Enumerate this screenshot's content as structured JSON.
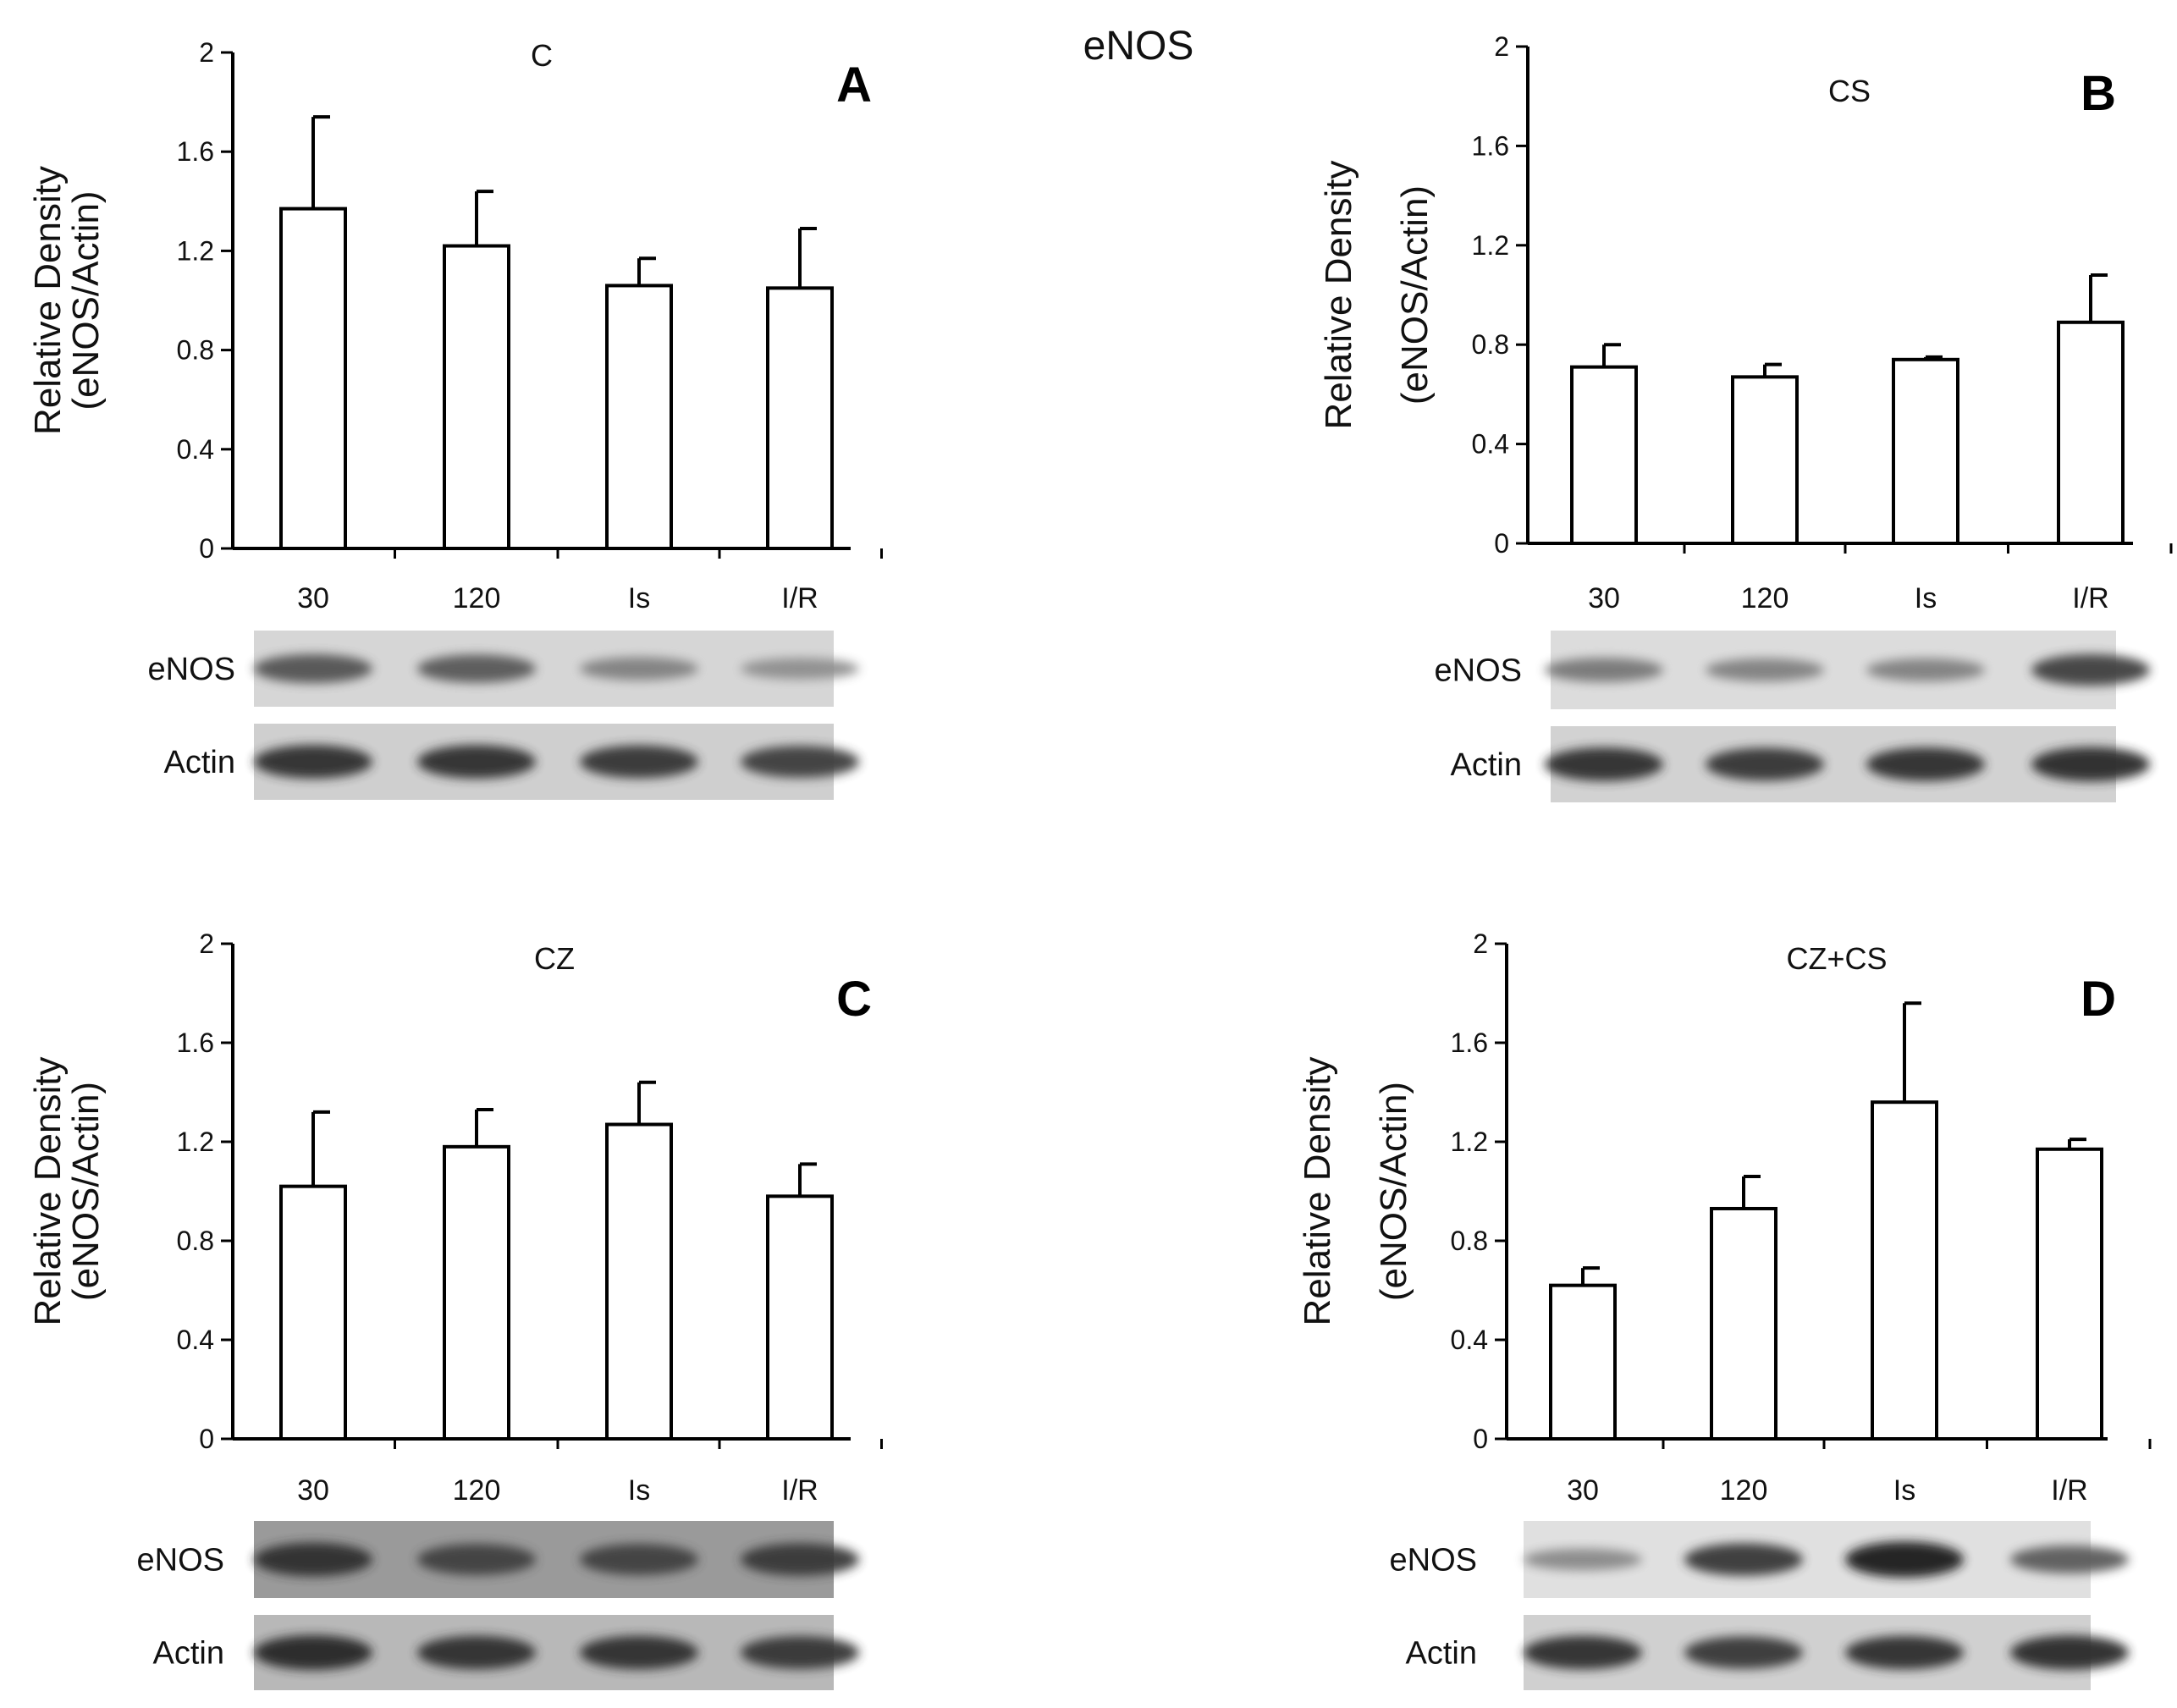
{
  "figure_title": "eNOS",
  "chart_data": [
    {
      "type": "bar",
      "panel": "A",
      "title": "C",
      "ylabel_line1": "Relative Density",
      "ylabel_line2": "(eNOS/Actin)",
      "xlabel": "",
      "ylim": [
        0,
        2
      ],
      "yticks": [
        "0",
        "0.4",
        "0.8",
        "1.2",
        "1.6",
        "2"
      ],
      "categories": [
        "30",
        "120",
        "Is",
        "I/R"
      ],
      "values": [
        1.37,
        1.22,
        1.06,
        1.05
      ],
      "errors": [
        0.37,
        0.22,
        0.11,
        0.24
      ],
      "blot": {
        "band1_label": "eNOS",
        "band2_label": "Actin",
        "band1_intensity": [
          0.65,
          0.62,
          0.4,
          0.32
        ],
        "band2_intensity": [
          0.85,
          0.85,
          0.82,
          0.78
        ],
        "band1_bg": "#d6d6d6",
        "band2_bg": "#cfcfcf"
      }
    },
    {
      "type": "bar",
      "panel": "B",
      "title": "CS",
      "ylabel_line1": "Relative Density",
      "ylabel_line2": "(eNOS/Actin)",
      "xlabel": "",
      "ylim": [
        0,
        2
      ],
      "yticks": [
        "0",
        "0.4",
        "0.8",
        "1.2",
        "1.6",
        "2"
      ],
      "categories": [
        "30",
        "120",
        "Is",
        "I/R"
      ],
      "values": [
        0.71,
        0.67,
        0.74,
        0.89
      ],
      "errors": [
        0.09,
        0.05,
        0.01,
        0.19
      ],
      "blot": {
        "band1_label": "eNOS",
        "band2_label": "Actin",
        "band1_intensity": [
          0.45,
          0.4,
          0.4,
          0.75
        ],
        "band2_intensity": [
          0.85,
          0.82,
          0.85,
          0.88
        ],
        "band1_bg": "#dcdcdc",
        "band2_bg": "#d2d2d2"
      }
    },
    {
      "type": "bar",
      "panel": "C",
      "title": "CZ",
      "ylabel_line1": "Relative Density",
      "ylabel_line2": "(eNOS/Actin)",
      "xlabel": "",
      "ylim": [
        0,
        2
      ],
      "yticks": [
        "0",
        "0.4",
        "0.8",
        "1.2",
        "1.6",
        "2"
      ],
      "categories": [
        "30",
        "120",
        "Is",
        "I/R"
      ],
      "values": [
        1.02,
        1.18,
        1.27,
        0.98
      ],
      "errors": [
        0.3,
        0.15,
        0.17,
        0.13
      ],
      "blot": {
        "band1_label": "eNOS",
        "band2_label": "Actin",
        "band1_intensity": [
          0.85,
          0.75,
          0.75,
          0.8
        ],
        "band2_intensity": [
          0.9,
          0.85,
          0.85,
          0.82
        ],
        "band1_bg": "#9a9a9a",
        "band2_bg": "#b8b8b8"
      }
    },
    {
      "type": "bar",
      "panel": "D",
      "title": "CZ+CS",
      "ylabel_line1": "Relative Density",
      "ylabel_line2": "(eNOS/Actin)",
      "xlabel": "",
      "ylim": [
        0,
        2
      ],
      "yticks": [
        "0",
        "0.4",
        "0.8",
        "1.2",
        "1.6",
        "2"
      ],
      "categories": [
        "30",
        "120",
        "Is",
        "I/R"
      ],
      "values": [
        0.62,
        0.93,
        1.36,
        1.17
      ],
      "errors": [
        0.07,
        0.13,
        0.4,
        0.04
      ],
      "blot": {
        "band1_label": "eNOS",
        "band2_label": "Actin",
        "band1_intensity": [
          0.35,
          0.8,
          0.95,
          0.6
        ],
        "band2_intensity": [
          0.85,
          0.8,
          0.85,
          0.88
        ],
        "band1_bg": "#e0e0e0",
        "band2_bg": "#d0d0d0"
      }
    }
  ]
}
